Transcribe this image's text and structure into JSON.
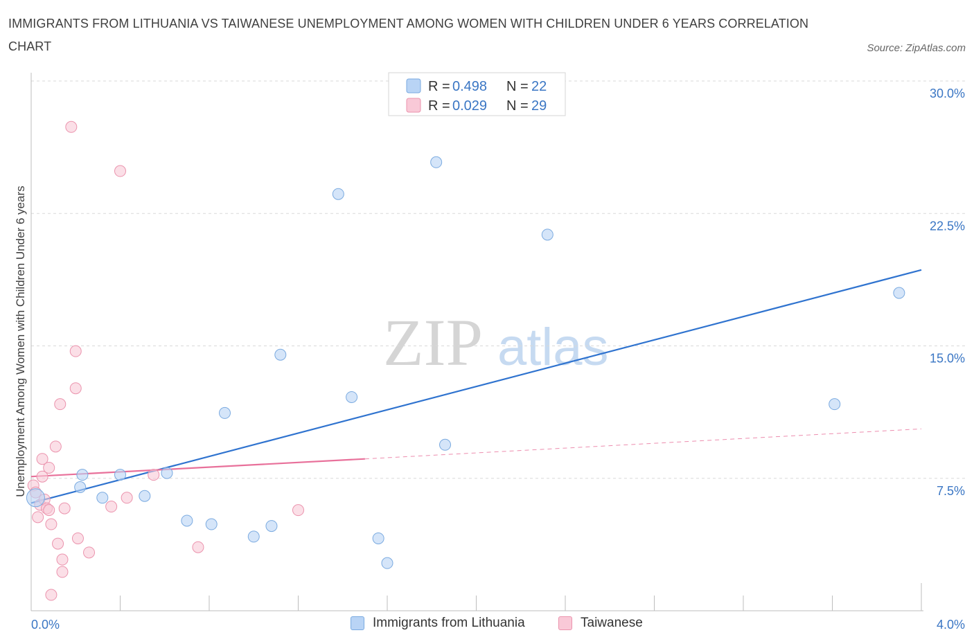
{
  "header": {
    "title": "IMMIGRANTS FROM LITHUANIA VS TAIWANESE UNEMPLOYMENT AMONG WOMEN WITH CHILDREN UNDER 6 YEARS CORRELATION CHART",
    "source": "Source: ZipAtlas.com"
  },
  "watermark": {
    "zip": "ZIP",
    "atlas": "atlas"
  },
  "legend": {
    "r_label": "R =",
    "n_label": "N =",
    "rows": [
      {
        "r": "0.498",
        "n": "22"
      },
      {
        "r": "0.029",
        "n": "29"
      }
    ]
  },
  "colors": {
    "blue_fill": "#b9d4f5",
    "blue_stroke": "#7aaae0",
    "blue_line": "#2f73cf",
    "pink_fill": "#f9c9d7",
    "pink_stroke": "#eb93ad",
    "pink_line": "#e8709a",
    "tick_text": "#3a76c4",
    "grid": "#d9d9d9"
  },
  "chart_data": {
    "type": "scatter",
    "title": "IMMIGRANTS FROM LITHUANIA VS TAIWANESE UNEMPLOYMENT AMONG WOMEN WITH CHILDREN UNDER 6 YEARS CORRELATION CHART",
    "xlabel": "",
    "ylabel": "Unemployment Among Women with Children Under 6 years",
    "xlim": [
      0,
      4.0
    ],
    "ylim": [
      0,
      30.0
    ],
    "x_tick_labels": [
      "0.0%",
      "4.0%"
    ],
    "y_ticks": [
      7.5,
      15.0,
      22.5,
      30.0
    ],
    "y_tick_labels": [
      "7.5%",
      "15.0%",
      "22.5%",
      "30.0%"
    ],
    "grid": true,
    "legend_position": "top-center",
    "series": [
      {
        "name": "Immigrants from Lithuania",
        "r": 0.498,
        "n": 22,
        "points": [
          [
            0.02,
            6.4
          ],
          [
            0.23,
            7.7
          ],
          [
            0.4,
            7.7
          ],
          [
            0.61,
            7.8
          ],
          [
            0.22,
            7.0
          ],
          [
            0.32,
            6.4
          ],
          [
            0.51,
            6.5
          ],
          [
            0.7,
            5.1
          ],
          [
            0.81,
            4.9
          ],
          [
            0.87,
            11.2
          ],
          [
            1.0,
            4.2
          ],
          [
            1.08,
            4.8
          ],
          [
            1.12,
            14.5
          ],
          [
            1.38,
            23.6
          ],
          [
            1.44,
            12.1
          ],
          [
            1.56,
            4.1
          ],
          [
            1.6,
            2.7
          ],
          [
            1.82,
            25.4
          ],
          [
            1.86,
            9.4
          ],
          [
            2.32,
            21.3
          ],
          [
            3.61,
            11.7
          ],
          [
            3.9,
            18.0
          ]
        ],
        "trend": {
          "x": [
            0.0,
            4.0
          ],
          "y": [
            6.1,
            19.3
          ]
        }
      },
      {
        "name": "Taiwanese",
        "r": 0.029,
        "n": 29,
        "points": [
          [
            0.01,
            7.1
          ],
          [
            0.02,
            6.7
          ],
          [
            0.03,
            5.3
          ],
          [
            0.04,
            6.0
          ],
          [
            0.05,
            7.6
          ],
          [
            0.05,
            8.6
          ],
          [
            0.06,
            6.3
          ],
          [
            0.07,
            5.8
          ],
          [
            0.08,
            8.1
          ],
          [
            0.08,
            5.7
          ],
          [
            0.09,
            4.9
          ],
          [
            0.09,
            0.9
          ],
          [
            0.11,
            9.3
          ],
          [
            0.12,
            3.8
          ],
          [
            0.13,
            11.7
          ],
          [
            0.14,
            2.9
          ],
          [
            0.14,
            2.2
          ],
          [
            0.15,
            5.8
          ],
          [
            0.18,
            27.4
          ],
          [
            0.2,
            12.6
          ],
          [
            0.2,
            14.7
          ],
          [
            0.21,
            4.1
          ],
          [
            0.26,
            3.3
          ],
          [
            0.36,
            5.9
          ],
          [
            0.4,
            24.9
          ],
          [
            0.43,
            6.4
          ],
          [
            0.55,
            7.7
          ],
          [
            0.75,
            3.6
          ],
          [
            1.2,
            5.7
          ]
        ],
        "trend": {
          "x": [
            0.0,
            1.5
          ],
          "y": [
            7.6,
            8.6
          ]
        },
        "trend_extension": {
          "x": [
            1.5,
            4.0
          ],
          "y": [
            8.6,
            10.3
          ]
        }
      }
    ]
  }
}
